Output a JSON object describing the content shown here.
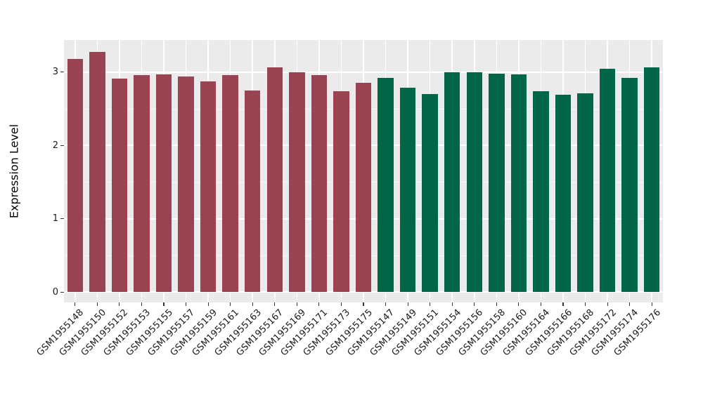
{
  "chart_data": {
    "type": "bar",
    "title": "",
    "xlabel": "",
    "ylabel": "Expression Level",
    "ylim": [
      -0.15,
      3.43
    ],
    "yticks": [
      0,
      1,
      2,
      3
    ],
    "ytick_labels": [
      "0",
      "1",
      "2",
      "3"
    ],
    "yminor_ticks": [
      0.5,
      1.5,
      2.5
    ],
    "grid": "major-and-minor-white-on-grey",
    "legend": "none",
    "categories": [
      "GSM1955148",
      "GSM1955150",
      "GSM1955152",
      "GSM1955153",
      "GSM1955155",
      "GSM1955157",
      "GSM1955159",
      "GSM1955161",
      "GSM1955163",
      "GSM1955167",
      "GSM1955169",
      "GSM1955171",
      "GSM1955173",
      "GSM1955175",
      "GSM1955147",
      "GSM1955149",
      "GSM1955151",
      "GSM1955154",
      "GSM1955156",
      "GSM1955158",
      "GSM1955160",
      "GSM1955164",
      "GSM1955166",
      "GSM1955168",
      "GSM1955172",
      "GSM1955174",
      "GSM1955176"
    ],
    "values": [
      3.18,
      3.27,
      2.91,
      2.96,
      2.97,
      2.94,
      2.87,
      2.96,
      2.75,
      3.06,
      3.0,
      2.96,
      2.74,
      2.85,
      2.92,
      2.78,
      2.7,
      3.0,
      3.0,
      2.98,
      2.97,
      2.74,
      2.69,
      2.71,
      3.04,
      2.92,
      3.06
    ],
    "bar_groups": [
      "maroon",
      "maroon",
      "maroon",
      "maroon",
      "maroon",
      "maroon",
      "maroon",
      "maroon",
      "maroon",
      "maroon",
      "maroon",
      "maroon",
      "maroon",
      "maroon",
      "green",
      "green",
      "green",
      "green",
      "green",
      "green",
      "green",
      "green",
      "green",
      "green",
      "green",
      "green",
      "green"
    ],
    "colors": {
      "maroon": "#9A4352",
      "green": "#006647",
      "panel_background": "#EBEBEB",
      "grid_major": "#FFFFFF",
      "grid_minor": "rgba(255,255,255,0.55)",
      "tick_color": "#333333",
      "text_color": "#1a1a1a"
    }
  }
}
